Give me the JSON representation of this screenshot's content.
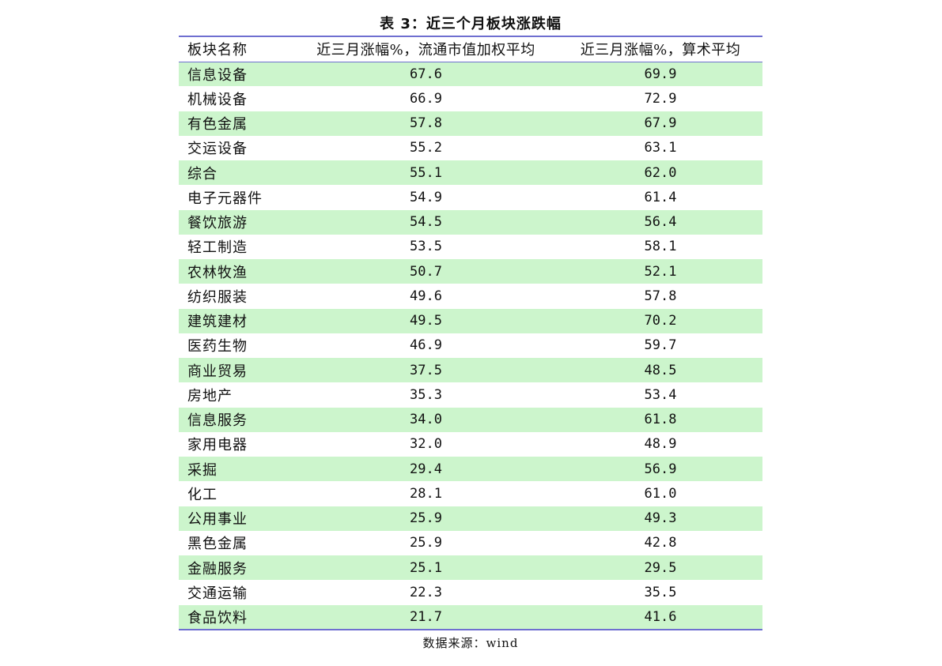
{
  "title": "表 3：近三个月板块涨跌幅",
  "table": {
    "headers": [
      "板块名称",
      "近三月涨幅%，流通市值加权平均",
      "近三月涨幅%，算术平均"
    ],
    "rows": [
      {
        "name": "信息设备",
        "weighted": "67.6",
        "arithmetic": "69.9"
      },
      {
        "name": "机械设备",
        "weighted": "66.9",
        "arithmetic": "72.9"
      },
      {
        "name": "有色金属",
        "weighted": "57.8",
        "arithmetic": "67.9"
      },
      {
        "name": "交运设备",
        "weighted": "55.2",
        "arithmetic": "63.1"
      },
      {
        "name": "综合",
        "weighted": "55.1",
        "arithmetic": "62.0"
      },
      {
        "name": "电子元器件",
        "weighted": "54.9",
        "arithmetic": "61.4"
      },
      {
        "name": "餐饮旅游",
        "weighted": "54.5",
        "arithmetic": "56.4"
      },
      {
        "name": "轻工制造",
        "weighted": "53.5",
        "arithmetic": "58.1"
      },
      {
        "name": "农林牧渔",
        "weighted": "50.7",
        "arithmetic": "52.1"
      },
      {
        "name": "纺织服装",
        "weighted": "49.6",
        "arithmetic": "57.8"
      },
      {
        "name": "建筑建材",
        "weighted": "49.5",
        "arithmetic": "70.2"
      },
      {
        "name": "医药生物",
        "weighted": "46.9",
        "arithmetic": "59.7"
      },
      {
        "name": "商业贸易",
        "weighted": "37.5",
        "arithmetic": "48.5"
      },
      {
        "name": "房地产",
        "weighted": "35.3",
        "arithmetic": "53.4"
      },
      {
        "name": "信息服务",
        "weighted": "34.0",
        "arithmetic": "61.8"
      },
      {
        "name": "家用电器",
        "weighted": "32.0",
        "arithmetic": "48.9"
      },
      {
        "name": "采掘",
        "weighted": "29.4",
        "arithmetic": "56.9"
      },
      {
        "name": "化工",
        "weighted": "28.1",
        "arithmetic": "61.0"
      },
      {
        "name": "公用事业",
        "weighted": "25.9",
        "arithmetic": "49.3"
      },
      {
        "name": "黑色金属",
        "weighted": "25.9",
        "arithmetic": "42.8"
      },
      {
        "name": "金融服务",
        "weighted": "25.1",
        "arithmetic": "29.5"
      },
      {
        "name": "交通运输",
        "weighted": "22.3",
        "arithmetic": "35.5"
      },
      {
        "name": "食品饮料",
        "weighted": "21.7",
        "arithmetic": "41.6"
      }
    ]
  },
  "source": "数据来源：wind",
  "colors": {
    "stripe": "#ccf5cc",
    "rule": "#6f6fd0"
  }
}
